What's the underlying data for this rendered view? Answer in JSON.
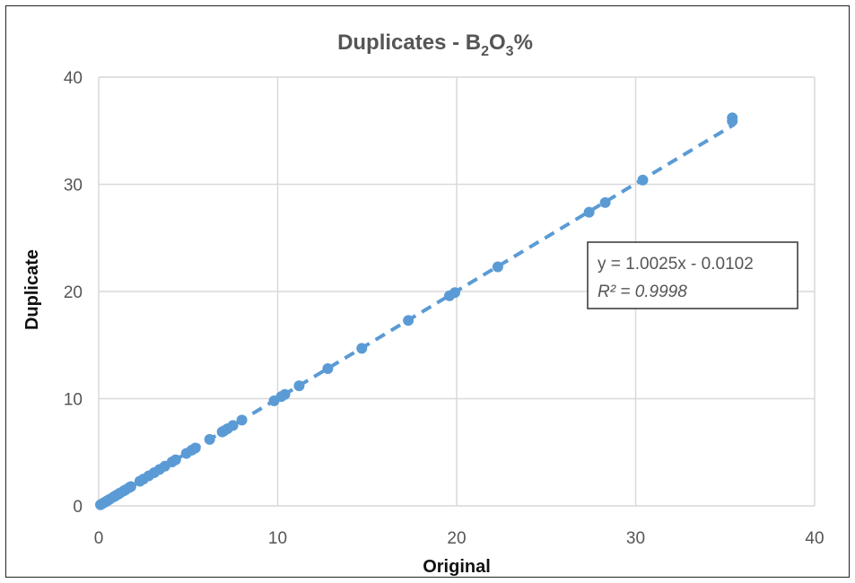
{
  "chart_data": {
    "type": "scatter",
    "title_main": "Duplicates - B",
    "title_sub1": "2",
    "title_mid": "O",
    "title_sub2": "3",
    "title_end": "%",
    "xlabel": "Original",
    "ylabel": "Duplicate",
    "xlim": [
      0,
      40
    ],
    "ylim": [
      0,
      40
    ],
    "xticks": [
      0,
      10,
      20,
      30,
      40
    ],
    "yticks": [
      0,
      10,
      20,
      30,
      40
    ],
    "grid": true,
    "color": "#5b9bd5",
    "points": [
      [
        0.1,
        0.1
      ],
      [
        0.2,
        0.2
      ],
      [
        0.3,
        0.3
      ],
      [
        0.4,
        0.4
      ],
      [
        0.5,
        0.5
      ],
      [
        0.6,
        0.6
      ],
      [
        0.8,
        0.8
      ],
      [
        0.9,
        0.9
      ],
      [
        1.0,
        1.0
      ],
      [
        1.1,
        1.1
      ],
      [
        1.2,
        1.2
      ],
      [
        1.4,
        1.4
      ],
      [
        1.5,
        1.5
      ],
      [
        1.7,
        1.7
      ],
      [
        1.8,
        1.8
      ],
      [
        2.3,
        2.3
      ],
      [
        2.5,
        2.5
      ],
      [
        2.8,
        2.8
      ],
      [
        3.1,
        3.1
      ],
      [
        3.4,
        3.4
      ],
      [
        3.7,
        3.7
      ],
      [
        4.1,
        4.1
      ],
      [
        4.3,
        4.3
      ],
      [
        4.9,
        4.9
      ],
      [
        5.2,
        5.2
      ],
      [
        5.4,
        5.4
      ],
      [
        6.2,
        6.2
      ],
      [
        6.9,
        6.9
      ],
      [
        7.0,
        7.0
      ],
      [
        7.2,
        7.2
      ],
      [
        7.5,
        7.5
      ],
      [
        8.0,
        8.0
      ],
      [
        9.8,
        9.8
      ],
      [
        10.2,
        10.2
      ],
      [
        10.4,
        10.4
      ],
      [
        11.2,
        11.2
      ],
      [
        12.8,
        12.8
      ],
      [
        14.7,
        14.7
      ],
      [
        17.3,
        17.3
      ],
      [
        19.6,
        19.6
      ],
      [
        19.9,
        19.9
      ],
      [
        22.3,
        22.3
      ],
      [
        27.4,
        27.4
      ],
      [
        28.3,
        28.3
      ],
      [
        30.4,
        30.4
      ],
      [
        35.4,
        35.9
      ],
      [
        35.4,
        36.2
      ]
    ],
    "trendline": {
      "slope": 1.0025,
      "intercept": -0.0102,
      "x_range": [
        0,
        35.5
      ]
    },
    "equation_label": "y = 1.0025x - 0.0102",
    "r2_label": "R² = 0.9998"
  }
}
